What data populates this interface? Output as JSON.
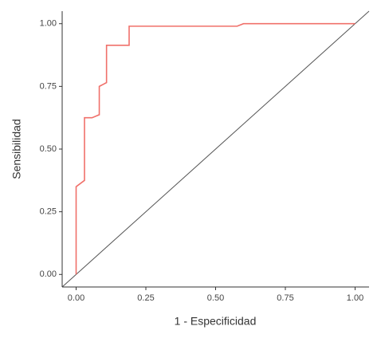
{
  "chart_data": {
    "type": "line",
    "x_label": "1 - Especificidad",
    "y_label": "Sensibilidad",
    "x": [
      0,
      0,
      0.03,
      0.03,
      0.057,
      0.083,
      0.083,
      0.109,
      0.109,
      0.19,
      0.19,
      0.577,
      0.6,
      1.0
    ],
    "values": [
      0,
      0.35,
      0.375,
      0.625,
      0.625,
      0.637,
      0.75,
      0.765,
      0.914,
      0.914,
      0.99,
      0.99,
      1.0,
      1.0
    ],
    "color": "#f0706a",
    "reference_line_color": "#555555",
    "xlim": [
      -0.05,
      1.05
    ],
    "ylim": [
      -0.05,
      1.05
    ],
    "xticks": [
      {
        "value": 0,
        "label": "0.00"
      },
      {
        "value": 0.25,
        "label": "0.25"
      },
      {
        "value": 0.5,
        "label": "0.50"
      },
      {
        "value": 0.75,
        "label": "0.75"
      },
      {
        "value": 1,
        "label": "1.00"
      }
    ],
    "yticks": [
      {
        "value": 0,
        "label": "0.00"
      },
      {
        "value": 0.25,
        "label": "0.25"
      },
      {
        "value": 0.5,
        "label": "0.50"
      },
      {
        "value": 0.75,
        "label": "0.75"
      },
      {
        "value": 1,
        "label": "1.00"
      }
    ]
  }
}
